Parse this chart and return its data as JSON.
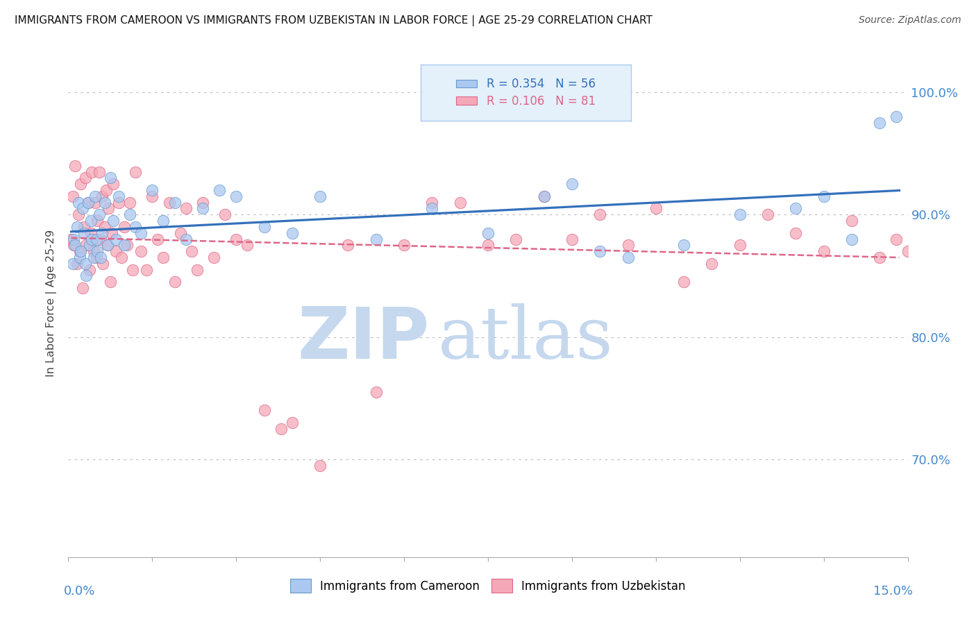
{
  "title": "IMMIGRANTS FROM CAMEROON VS IMMIGRANTS FROM UZBEKISTAN IN LABOR FORCE | AGE 25-29 CORRELATION CHART",
  "source": "Source: ZipAtlas.com",
  "ylabel": "In Labor Force | Age 25-29",
  "y_ticks": [
    70.0,
    80.0,
    90.0,
    100.0
  ],
  "y_tick_labels": [
    "70.0%",
    "80.0%",
    "90.0%",
    "100.0%"
  ],
  "xlim": [
    0.0,
    15.0
  ],
  "ylim": [
    62.0,
    103.5
  ],
  "cameroon_R": 0.354,
  "cameroon_N": 56,
  "uzbekistan_R": 0.106,
  "uzbekistan_N": 81,
  "cameroon_color": "#aac8f0",
  "uzbekistan_color": "#f5a8b8",
  "cameroon_edge_color": "#6699cc",
  "uzbekistan_edge_color": "#dd6688",
  "cameroon_line_color": "#3370bb",
  "uzbekistan_line_color": "#dd6688",
  "legend_box_color": "#e4f0fa",
  "legend_border_color": "#aaccee",
  "watermark_zip": "ZIP",
  "watermark_atlas": "atlas",
  "watermark_color": "#c5d8ee",
  "background_color": "#ffffff",
  "cameroon_x": [
    0.08,
    0.1,
    0.12,
    0.15,
    0.18,
    0.2,
    0.22,
    0.25,
    0.28,
    0.3,
    0.32,
    0.35,
    0.38,
    0.4,
    0.42,
    0.45,
    0.48,
    0.5,
    0.52,
    0.55,
    0.58,
    0.6,
    0.65,
    0.7,
    0.75,
    0.8,
    0.85,
    0.9,
    1.0,
    1.1,
    1.2,
    1.3,
    1.5,
    1.7,
    1.9,
    2.1,
    2.4,
    2.7,
    3.0,
    3.5,
    4.0,
    4.5,
    5.5,
    6.5,
    7.5,
    8.5,
    9.0,
    9.5,
    10.0,
    11.0,
    12.0,
    13.0,
    13.5,
    14.0,
    14.5,
    14.8
  ],
  "cameroon_y": [
    86.0,
    88.0,
    87.5,
    89.0,
    91.0,
    86.5,
    87.0,
    90.5,
    88.5,
    86.0,
    85.0,
    91.0,
    87.5,
    89.5,
    88.0,
    86.5,
    91.5,
    88.0,
    87.0,
    90.0,
    86.5,
    88.5,
    91.0,
    87.5,
    93.0,
    89.5,
    88.0,
    91.5,
    87.5,
    90.0,
    89.0,
    88.5,
    92.0,
    89.5,
    91.0,
    88.0,
    90.5,
    92.0,
    91.5,
    89.0,
    88.5,
    91.5,
    88.0,
    90.5,
    88.5,
    91.5,
    92.5,
    87.0,
    86.5,
    87.5,
    90.0,
    90.5,
    91.5,
    88.0,
    97.5,
    98.0
  ],
  "uzbekistan_x": [
    0.05,
    0.08,
    0.1,
    0.12,
    0.15,
    0.18,
    0.2,
    0.22,
    0.25,
    0.28,
    0.3,
    0.32,
    0.35,
    0.38,
    0.4,
    0.42,
    0.45,
    0.48,
    0.5,
    0.52,
    0.55,
    0.58,
    0.6,
    0.62,
    0.65,
    0.68,
    0.7,
    0.72,
    0.75,
    0.78,
    0.8,
    0.85,
    0.9,
    0.95,
    1.0,
    1.05,
    1.1,
    1.15,
    1.2,
    1.3,
    1.4,
    1.5,
    1.6,
    1.7,
    1.8,
    1.9,
    2.0,
    2.1,
    2.2,
    2.3,
    2.4,
    2.6,
    2.8,
    3.0,
    3.2,
    3.5,
    3.8,
    4.0,
    4.5,
    5.0,
    5.5,
    6.0,
    6.5,
    7.0,
    7.5,
    8.0,
    8.5,
    9.0,
    9.5,
    10.0,
    10.5,
    11.0,
    11.5,
    12.0,
    12.5,
    13.0,
    13.5,
    14.0,
    14.5,
    14.8,
    15.0
  ],
  "uzbekistan_y": [
    88.0,
    91.5,
    87.5,
    94.0,
    86.0,
    90.0,
    87.0,
    92.5,
    84.0,
    89.0,
    93.0,
    87.5,
    91.0,
    85.5,
    88.5,
    93.5,
    87.0,
    91.0,
    86.5,
    89.5,
    93.5,
    88.0,
    91.5,
    86.0,
    89.0,
    92.0,
    87.5,
    90.5,
    84.5,
    88.5,
    92.5,
    87.0,
    91.0,
    86.5,
    89.0,
    87.5,
    91.0,
    85.5,
    93.5,
    87.0,
    85.5,
    91.5,
    88.0,
    86.5,
    91.0,
    84.5,
    88.5,
    90.5,
    87.0,
    85.5,
    91.0,
    86.5,
    90.0,
    88.0,
    87.5,
    74.0,
    72.5,
    73.0,
    69.5,
    87.5,
    75.5,
    87.5,
    91.0,
    91.0,
    87.5,
    88.0,
    91.5,
    88.0,
    90.0,
    87.5,
    90.5,
    84.5,
    86.0,
    87.5,
    90.0,
    88.5,
    87.0,
    89.5,
    86.5,
    88.0,
    87.0
  ]
}
